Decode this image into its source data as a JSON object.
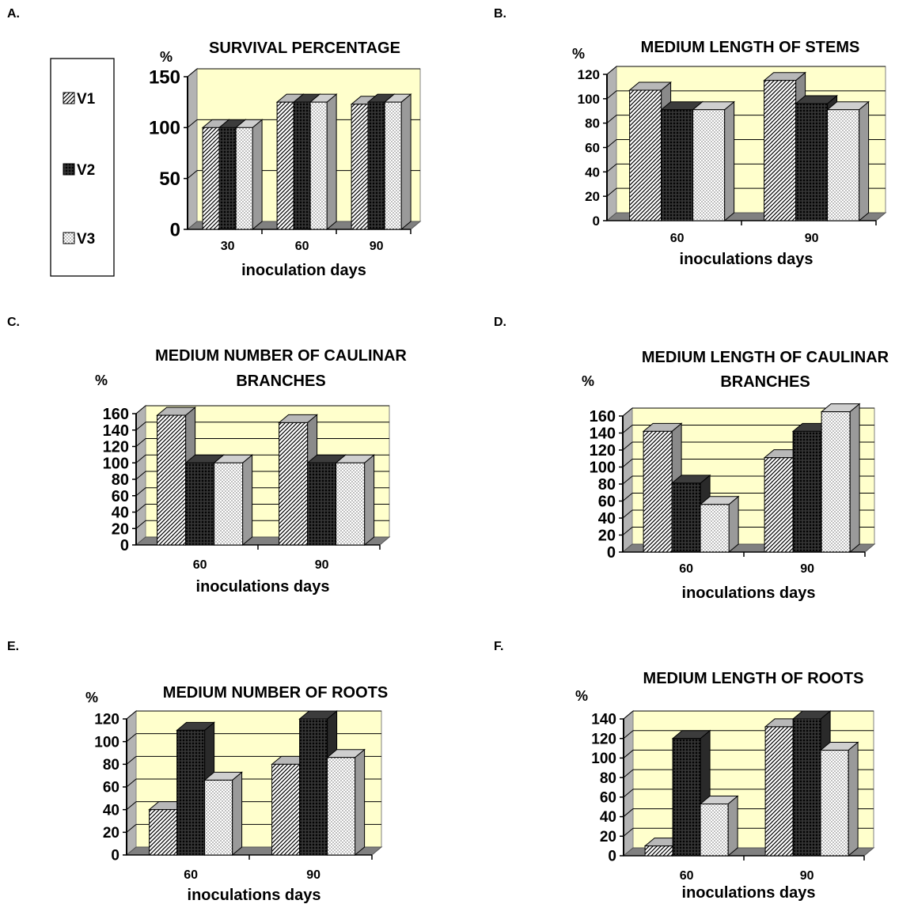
{
  "colors": {
    "plot_background": "#ffffcc",
    "floor": "#808080",
    "wall_side": "#999999",
    "bar_face": "#ffffff",
    "bar_pattern": "#000000"
  },
  "legend": {
    "items": [
      {
        "label": "V1",
        "pattern": "diagonal-hatch"
      },
      {
        "label": "V2",
        "pattern": "dark-crosshatch"
      },
      {
        "label": "V3",
        "pattern": "dots"
      }
    ]
  },
  "chart_data": [
    {
      "panel": "A.",
      "type": "bar",
      "title_lines": [
        "SURVIVAL PERCENTAGE"
      ],
      "unit": "%",
      "xlabel": "inoculation days",
      "categories": [
        "30",
        "60",
        "90"
      ],
      "yticks": [
        "0",
        "50",
        "100",
        "150"
      ],
      "ylim": [
        0,
        150
      ],
      "grid": true,
      "series": [
        {
          "name": "V1",
          "values": [
            100,
            125,
            123
          ]
        },
        {
          "name": "V2",
          "values": [
            100,
            125,
            125
          ]
        },
        {
          "name": "V3",
          "values": [
            100,
            125,
            125
          ]
        }
      ]
    },
    {
      "panel": "B.",
      "type": "bar",
      "title_lines": [
        "MEDIUM LENGTH OF STEMS"
      ],
      "unit": "%",
      "xlabel": "inoculations days",
      "categories": [
        "60",
        "90"
      ],
      "yticks": [
        "0",
        "20",
        "40",
        "60",
        "80",
        "100",
        "120"
      ],
      "ylim": [
        0,
        120
      ],
      "grid": true,
      "series": [
        {
          "name": "V1",
          "values": [
            107,
            115
          ]
        },
        {
          "name": "V2",
          "values": [
            91,
            96
          ]
        },
        {
          "name": "V3",
          "values": [
            91,
            91
          ]
        }
      ]
    },
    {
      "panel": "C.",
      "type": "bar",
      "title_lines": [
        "MEDIUM NUMBER OF CAULINAR",
        "BRANCHES"
      ],
      "unit": "%",
      "xlabel": "inoculations days",
      "categories": [
        "60",
        "90"
      ],
      "yticks": [
        "0",
        "20",
        "40",
        "60",
        "80",
        "100",
        "120",
        "140",
        "160"
      ],
      "ylim": [
        0,
        160
      ],
      "grid": true,
      "series": [
        {
          "name": "V1",
          "values": [
            158,
            149
          ]
        },
        {
          "name": "V2",
          "values": [
            100,
            100
          ]
        },
        {
          "name": "V3",
          "values": [
            100,
            100
          ]
        }
      ]
    },
    {
      "panel": "D.",
      "type": "bar",
      "title_lines": [
        "MEDIUM LENGTH OF CAULINAR",
        "BRANCHES"
      ],
      "unit": "%",
      "xlabel": "inoculations days",
      "categories": [
        "60",
        "90"
      ],
      "yticks": [
        "0",
        "20",
        "40",
        "60",
        "80",
        "100",
        "120",
        "140",
        "160"
      ],
      "ylim": [
        0,
        160
      ],
      "grid": true,
      "series": [
        {
          "name": "V1",
          "values": [
            142,
            111
          ]
        },
        {
          "name": "V2",
          "values": [
            81,
            142
          ]
        },
        {
          "name": "V3",
          "values": [
            56,
            165
          ]
        }
      ]
    },
    {
      "panel": "E.",
      "type": "bar",
      "title_lines": [
        "MEDIUM NUMBER OF ROOTS"
      ],
      "unit": "%",
      "xlabel": "inoculations days",
      "categories": [
        "60",
        "90"
      ],
      "yticks": [
        "0",
        "20",
        "40",
        "60",
        "80",
        "100",
        "120"
      ],
      "ylim": [
        0,
        120
      ],
      "grid": true,
      "series": [
        {
          "name": "V1",
          "values": [
            40,
            80
          ]
        },
        {
          "name": "V2",
          "values": [
            110,
            120
          ]
        },
        {
          "name": "V3",
          "values": [
            66,
            86
          ]
        }
      ]
    },
    {
      "panel": "F.",
      "type": "bar",
      "title_lines": [
        "MEDIUM LENGTH OF ROOTS"
      ],
      "unit": "%",
      "xlabel": "inoculations days",
      "categories": [
        "60",
        "90"
      ],
      "yticks": [
        "0",
        "20",
        "40",
        "60",
        "80",
        "100",
        "120",
        "140"
      ],
      "ylim": [
        0,
        140
      ],
      "grid": true,
      "series": [
        {
          "name": "V1",
          "values": [
            10,
            132
          ]
        },
        {
          "name": "V2",
          "values": [
            120,
            140
          ]
        },
        {
          "name": "V3",
          "values": [
            53,
            108
          ]
        }
      ]
    }
  ]
}
